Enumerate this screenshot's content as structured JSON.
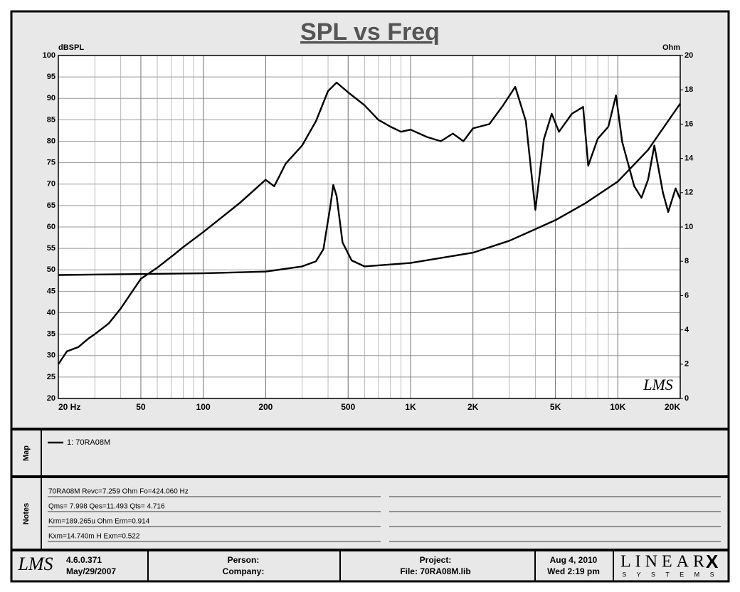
{
  "chart_data": {
    "type": "line",
    "title": "SPL vs Freq",
    "y_label": "dBSPL",
    "y2_label": "Ohm",
    "watermark": "LMS",
    "log_x": true,
    "grid": true,
    "xlim": [
      20,
      20000
    ],
    "xticks": [
      {
        "value": 20,
        "label": "20 Hz"
      },
      50,
      100,
      200,
      500,
      {
        "value": 1000,
        "label": "1K"
      },
      {
        "value": 2000,
        "label": "2K"
      },
      {
        "value": 5000,
        "label": "5K"
      },
      {
        "value": 10000,
        "label": "10K"
      },
      {
        "value": 20000,
        "label": "20K"
      }
    ],
    "ylim": [
      20,
      100
    ],
    "yticks": [
      20,
      25,
      30,
      35,
      40,
      45,
      50,
      55,
      60,
      65,
      70,
      75,
      80,
      85,
      90,
      95,
      100
    ],
    "y2lim": [
      0,
      20
    ],
    "y2ticks": [
      0,
      2,
      4,
      6,
      8,
      10,
      12,
      14,
      16,
      18,
      20
    ],
    "series": [
      {
        "name": "1: 70RA08M",
        "color": "#000000",
        "axis": "y",
        "x": [
          20,
          22,
          25,
          28,
          30,
          35,
          40,
          50,
          60,
          72,
          80,
          100,
          150,
          200,
          220,
          250,
          300,
          350,
          400,
          440,
          500,
          600,
          700,
          800,
          900,
          1000,
          1200,
          1400,
          1600,
          1800,
          2000,
          2400,
          2800,
          3200,
          3600,
          4000,
          4400,
          4800,
          5200,
          6000,
          6800,
          7200,
          8000,
          9000,
          9800,
          10500,
          12000,
          13000,
          14000,
          15000,
          16500,
          17500,
          19000,
          20000
        ],
        "values": [
          28,
          31,
          32,
          34,
          35,
          37.5,
          41,
          47.9,
          50.5,
          53.5,
          55.3,
          58.8,
          65.6,
          71,
          69.5,
          74.8,
          79,
          84.7,
          91.7,
          93.7,
          91.4,
          88.4,
          85,
          83.4,
          82.2,
          82.7,
          81,
          80,
          81.8,
          80,
          83,
          84,
          88.4,
          92.7,
          84.7,
          64,
          80.5,
          86.4,
          82.2,
          86.4,
          88,
          74.3,
          80.6,
          83.4,
          90.7,
          79.8,
          69.5,
          66.8,
          71.1,
          79,
          68,
          63.5,
          69,
          66.5
        ]
      },
      {
        "color": "#000000",
        "axis": "y2",
        "x": [
          20,
          100,
          200,
          300,
          350,
          380,
          410,
          424,
          440,
          470,
          520,
          600,
          1000,
          2000,
          3000,
          5000,
          7000,
          10000,
          14000,
          20000
        ],
        "values": [
          7.2,
          7.3,
          7.4,
          7.7,
          8,
          8.7,
          11.2,
          12.45,
          11.8,
          9.1,
          8.05,
          7.7,
          7.9,
          8.5,
          9.2,
          10.4,
          11.4,
          12.65,
          14.5,
          17.2
        ]
      }
    ]
  },
  "panels": {
    "map": "Map",
    "notes": "Notes"
  },
  "notes": [
    "70RA08M Revc=7.259 Ohm  Fo=424.060 Hz",
    "Qms= 7.998  Qes=11.493  Qts= 4.716",
    "Krm=189.265u Ohm  Erm=0.914",
    "Kxm=14.740m H  Exm=0.522"
  ],
  "footer": {
    "logo": "LMS",
    "version": "4.6.0.371",
    "build_date": "May/29/2007",
    "person": "Person:",
    "company": "Company:",
    "project": "Project:",
    "file": "File: 70RA08M.lib",
    "date": "Aug  4, 2010",
    "time": "Wed  2:19 pm",
    "brand": "LINEAR",
    "brand_x": "X",
    "brand_sub": "S Y S T E M S"
  }
}
